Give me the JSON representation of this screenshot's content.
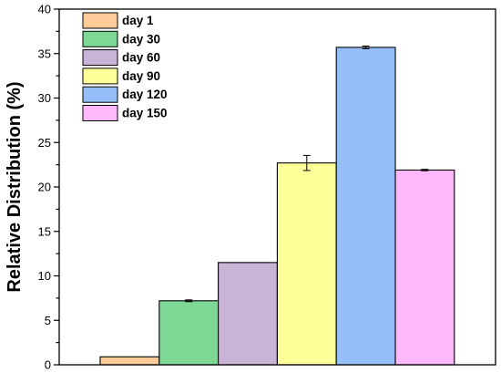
{
  "chart_data": {
    "type": "bar",
    "ylabel": "Relative Distribution (%)",
    "xlabel": "",
    "ylim": [
      0,
      40
    ],
    "ymajor_step": 5,
    "grid": false,
    "legend_position": "top-left",
    "yticks": [
      "0",
      "5",
      "10",
      "15",
      "20",
      "25",
      "30",
      "35",
      "40"
    ],
    "series": [
      {
        "name": "day 1",
        "value": 0.9,
        "error": 0,
        "color": "#FFCC99"
      },
      {
        "name": "day 30",
        "value": 7.2,
        "error": 0.1,
        "color": "#7DD896"
      },
      {
        "name": "day 60",
        "value": 11.5,
        "error": 0,
        "color": "#C9B3D6"
      },
      {
        "name": "day 90",
        "value": 22.7,
        "error": 0.85,
        "color": "#FFFF99"
      },
      {
        "name": "day 120",
        "value": 35.7,
        "error": 0.15,
        "color": "#96BFFA"
      },
      {
        "name": "day 150",
        "value": 21.9,
        "error": 0.08,
        "color": "#FFB8FB"
      }
    ]
  }
}
